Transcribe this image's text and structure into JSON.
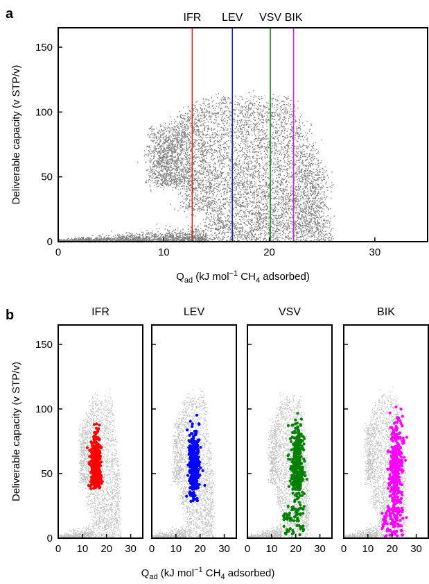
{
  "figure": {
    "panel_a_letter": "a",
    "panel_b_letter": "b"
  },
  "chart_data": [
    {
      "type": "scatter",
      "panel": "a",
      "title": "",
      "xlabel_main": "Q",
      "xlabel_sub": "ad",
      "xlabel_rest_1": " (kJ mol",
      "xlabel_sup": "−1",
      "xlabel_rest_2": " CH",
      "xlabel_sub2": "4",
      "xlabel_rest_3": " adsorbed)",
      "ylabel": "Deliverable capacity (v STP/v)",
      "xlim": [
        0,
        35
      ],
      "ylim": [
        0,
        165
      ],
      "xticks": [
        0,
        10,
        20,
        30
      ],
      "yticks": [
        0,
        50,
        100,
        150
      ],
      "grid": false,
      "point_color": "#7f7f7f",
      "vertical_lines": [
        {
          "name": "IFR",
          "x": 12.7,
          "color": "#e0241b"
        },
        {
          "name": "LEV",
          "x": 16.5,
          "color": "#1f1fbf"
        },
        {
          "name": "VSV",
          "x": 20.1,
          "color": "#138a13"
        },
        {
          "name": "BIK",
          "x": 22.3,
          "color": "#e020e0"
        }
      ],
      "distribution_description_envelope": [
        [
          0,
          0
        ],
        [
          8,
          2
        ],
        [
          10,
          5
        ],
        [
          11,
          15
        ],
        [
          12,
          30
        ],
        [
          13,
          55
        ],
        [
          14,
          90
        ],
        [
          16,
          110
        ],
        [
          20,
          115
        ],
        [
          24,
          90
        ],
        [
          25,
          40
        ],
        [
          26,
          10
        ],
        [
          30,
          2
        ]
      ]
    },
    {
      "type": "scatter",
      "panel": "b",
      "title": "",
      "xlabel_main": "Q",
      "xlabel_sub": "ad",
      "xlabel_rest_1": " (kJ mol",
      "xlabel_sup": "−1",
      "xlabel_rest_2": " CH",
      "xlabel_sub2": "4",
      "xlabel_rest_3": " adsorbed)",
      "ylabel": "Deliverable capacity (v STP/v)",
      "xlim": [
        0,
        35
      ],
      "ylim": [
        0,
        165
      ],
      "xticks": [
        0,
        10,
        20,
        30
      ],
      "yticks": [
        0,
        50,
        100,
        150
      ],
      "background_color": "#c0c0c0",
      "subplots": [
        {
          "name": "IFR",
          "color": "#ff0000",
          "q_center": 15.5,
          "q_spread": 2.0,
          "cap_center": 58,
          "cap_spread": 12,
          "cap_min": 38,
          "cap_max": 105
        },
        {
          "name": "LEV",
          "color": "#0000ff",
          "q_center": 17.5,
          "q_spread": 2.0,
          "cap_center": 55,
          "cap_spread": 13,
          "cap_min": 28,
          "cap_max": 110
        },
        {
          "name": "VSV",
          "color": "#008000",
          "q_center": 20.5,
          "q_spread": 2.5,
          "cap_center": 57,
          "cap_spread": 16,
          "cap_min": 2,
          "cap_max": 116
        },
        {
          "name": "BIK",
          "color": "#ff00ff",
          "q_center": 21.5,
          "q_spread": 2.5,
          "cap_center": 50,
          "cap_spread": 22,
          "cap_min": 1,
          "cap_max": 108
        }
      ]
    }
  ]
}
